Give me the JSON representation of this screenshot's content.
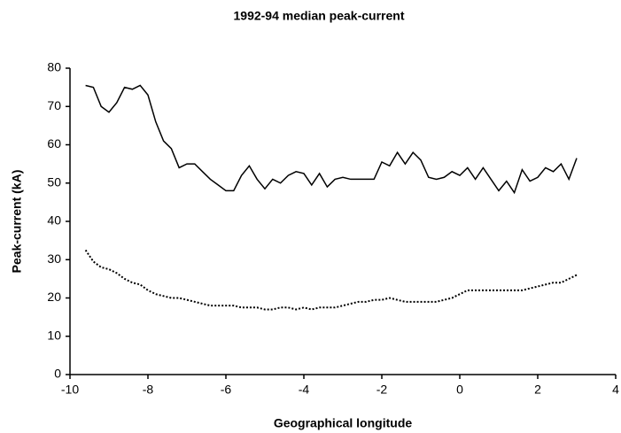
{
  "chart_data": {
    "type": "line",
    "title": "1992-94 median peak-current",
    "xlabel": "Geographical longitude",
    "ylabel": "Peak-current (kA)",
    "x": [
      -9.6,
      -9.4,
      -9.2,
      -9.0,
      -8.8,
      -8.6,
      -8.4,
      -8.2,
      -8.0,
      -7.8,
      -7.6,
      -7.4,
      -7.2,
      -7.0,
      -6.8,
      -6.6,
      -6.4,
      -6.2,
      -6.0,
      -5.8,
      -5.6,
      -5.4,
      -5.2,
      -5.0,
      -4.8,
      -4.6,
      -4.4,
      -4.2,
      -4.0,
      -3.8,
      -3.6,
      -3.4,
      -3.2,
      -3.0,
      -2.8,
      -2.6,
      -2.4,
      -2.2,
      -2.0,
      -1.8,
      -1.6,
      -1.4,
      -1.2,
      -1.0,
      -0.8,
      -0.6,
      -0.4,
      -0.2,
      0.0,
      0.2,
      0.4,
      0.6,
      0.8,
      1.0,
      1.2,
      1.4,
      1.6,
      1.8,
      2.0,
      2.2,
      2.4,
      2.6,
      2.8,
      3.0
    ],
    "series": [
      {
        "color": "#000000",
        "dash": "solid",
        "values": [
          75.5,
          75,
          70,
          68.5,
          71,
          75,
          74.5,
          75.5,
          73,
          66,
          61,
          59,
          54,
          55,
          55,
          53,
          51,
          49.5,
          48,
          48,
          52,
          54.5,
          51,
          48.5,
          51,
          50,
          52,
          53,
          52.5,
          49.5,
          52.5,
          49,
          51,
          51.5,
          51,
          51,
          51,
          51,
          55.5,
          54.5,
          58,
          55,
          58,
          56,
          51.5,
          51,
          51.5,
          53,
          52,
          54,
          51,
          54,
          51,
          48,
          50.5,
          47.5,
          53.5,
          50.5,
          51.5,
          54,
          53,
          55,
          51,
          56.5
        ]
      },
      {
        "color": "#000000",
        "dash": "dotted",
        "values": [
          32.5,
          29.5,
          28,
          27.5,
          26.5,
          25,
          24,
          23.5,
          22,
          21,
          20.5,
          20,
          20,
          19.5,
          19,
          18.5,
          18,
          18,
          18,
          18,
          17.5,
          17.5,
          17.5,
          17,
          17,
          17.5,
          17.5,
          17,
          17.5,
          17,
          17.5,
          17.5,
          17.5,
          18,
          18.5,
          19,
          19,
          19.5,
          19.5,
          20,
          19.5,
          19,
          19,
          19,
          19,
          19,
          19.5,
          20,
          21,
          22,
          22,
          22,
          22,
          22,
          22,
          22,
          22,
          22.5,
          23,
          23.5,
          24,
          24,
          25,
          26
        ]
      }
    ],
    "xlim": [
      -10,
      4
    ],
    "xticks": [
      -10,
      -8,
      -6,
      -4,
      -2,
      0,
      2,
      4
    ],
    "ylim": [
      0,
      80
    ],
    "yticks": [
      0,
      10,
      20,
      30,
      40,
      50,
      60,
      70,
      80
    ],
    "grid": false
  }
}
